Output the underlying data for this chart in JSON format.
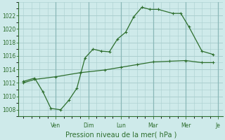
{
  "title": "Pression niveau de la mer( hPa )",
  "background_color": "#ceeaea",
  "grid_color": "#aacece",
  "line_color": "#2d6e2d",
  "ylim": [
    1007.0,
    1024.0
  ],
  "yticks": [
    1008,
    1010,
    1012,
    1014,
    1016,
    1018,
    1020,
    1022
  ],
  "xlim": [
    -0.3,
    12.3
  ],
  "xtick_positions": [
    2,
    4,
    6,
    8,
    10,
    12
  ],
  "xtick_labels": [
    "Ven",
    "Dim",
    "Lun",
    "Mar",
    "Mer",
    "Je"
  ],
  "vline_positions": [
    2,
    4,
    6,
    8,
    10,
    12
  ],
  "line1_x": [
    0,
    0.7,
    1.2,
    1.7,
    2.3,
    2.8,
    3.3,
    3.8,
    4.3,
    4.8,
    5.3,
    5.8,
    6.3,
    6.8,
    7.3,
    7.8,
    8.3,
    9.2,
    9.7,
    10.2,
    11.0,
    11.7
  ],
  "line1_y": [
    1012.2,
    1012.7,
    1010.7,
    1008.2,
    1008.0,
    1009.4,
    1011.2,
    1015.7,
    1017.0,
    1016.7,
    1016.6,
    1018.5,
    1019.5,
    1021.8,
    1023.2,
    1022.9,
    1022.9,
    1022.3,
    1022.3,
    1020.3,
    1016.7,
    1016.2
  ],
  "line2_x": [
    0,
    0.7,
    2.0,
    3.5,
    5.0,
    6.0,
    7.0,
    8.0,
    9.0,
    10.0,
    11.0,
    11.7
  ],
  "line2_y": [
    1012.0,
    1012.5,
    1012.9,
    1013.5,
    1013.9,
    1014.3,
    1014.7,
    1015.1,
    1015.2,
    1015.3,
    1015.0,
    1015.0
  ]
}
